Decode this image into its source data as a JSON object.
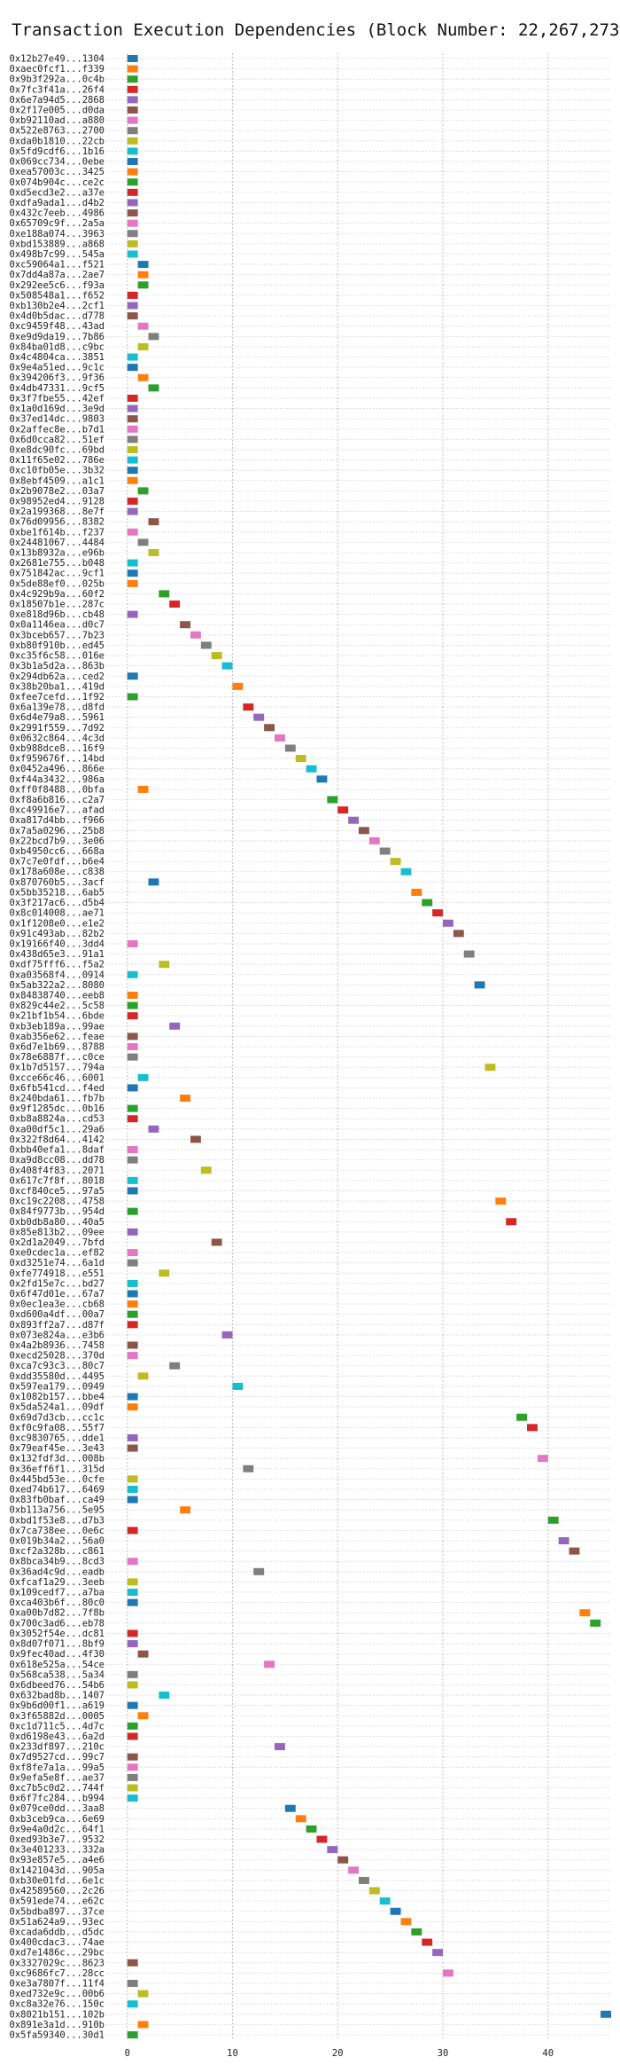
{
  "chart_data": {
    "type": "bar",
    "title": "Transaction Execution Dependencies (Block Number: 22,267,273)",
    "xlabel": "",
    "ylabel": "",
    "xlim": [
      -2,
      46
    ],
    "xticks": [
      0,
      10,
      20,
      30,
      40
    ],
    "grid": true,
    "bar_duration": 1,
    "palette": [
      "#1f77b4",
      "#ff7f0e",
      "#2ca02c",
      "#d62728",
      "#9467bd",
      "#8c564b",
      "#e377c2",
      "#7f7f7f",
      "#bcbd22",
      "#17becf"
    ],
    "transactions": [
      {
        "tx": "0x12b27e49...1304",
        "start": 0
      },
      {
        "tx": "0xaec0fcf1...f339",
        "start": 0
      },
      {
        "tx": "0x9b3f292a...0c4b",
        "start": 0
      },
      {
        "tx": "0x7fc3f41a...26f4",
        "start": 0
      },
      {
        "tx": "0x6e7a94d5...2868",
        "start": 0
      },
      {
        "tx": "0x2f17e005...d0da",
        "start": 0
      },
      {
        "tx": "0xb92110ad...a880",
        "start": 0
      },
      {
        "tx": "0x522e8763...2700",
        "start": 0
      },
      {
        "tx": "0xda0b1810...22cb",
        "start": 0
      },
      {
        "tx": "0x5fd9cdf6...1b16",
        "start": 0
      },
      {
        "tx": "0x069cc734...0ebe",
        "start": 0
      },
      {
        "tx": "0xea57003c...3425",
        "start": 0
      },
      {
        "tx": "0x074b904c...ce2c",
        "start": 0
      },
      {
        "tx": "0xd5ecd3e2...a37e",
        "start": 0
      },
      {
        "tx": "0xdfa9ada1...d4b2",
        "start": 0
      },
      {
        "tx": "0x432c7eeb...4986",
        "start": 0
      },
      {
        "tx": "0x65709c9f...2a5a",
        "start": 0
      },
      {
        "tx": "0xe188a074...3963",
        "start": 0
      },
      {
        "tx": "0xbd153889...a868",
        "start": 0
      },
      {
        "tx": "0x498b7c99...545a",
        "start": 0
      },
      {
        "tx": "0xc59064a1...f521",
        "start": 1
      },
      {
        "tx": "0x7dd4a87a...2ae7",
        "start": 1
      },
      {
        "tx": "0x292ee5c6...f93a",
        "start": 1
      },
      {
        "tx": "0x508548a1...f652",
        "start": 0
      },
      {
        "tx": "0xb130b2e4...2cf1",
        "start": 0
      },
      {
        "tx": "0x4d0b5dac...d778",
        "start": 0
      },
      {
        "tx": "0xc9459f48...43ad",
        "start": 1
      },
      {
        "tx": "0xe9d9da19...7b86",
        "start": 2
      },
      {
        "tx": "0x84ba01d8...c9bc",
        "start": 1
      },
      {
        "tx": "0x4c4804ca...3851",
        "start": 0
      },
      {
        "tx": "0x9e4a51ed...9c1c",
        "start": 0
      },
      {
        "tx": "0x394206f3...9f36",
        "start": 1
      },
      {
        "tx": "0x4db47331...9cf5",
        "start": 2
      },
      {
        "tx": "0x3f7fbe55...42ef",
        "start": 0
      },
      {
        "tx": "0x1a0d169d...3e9d",
        "start": 0
      },
      {
        "tx": "0x37ed14dc...9803",
        "start": 0
      },
      {
        "tx": "0x2affec8e...b7d1",
        "start": 0
      },
      {
        "tx": "0x6d0cca82...51ef",
        "start": 0
      },
      {
        "tx": "0xe8dc90fc...69bd",
        "start": 0
      },
      {
        "tx": "0x11f65e02...786e",
        "start": 0
      },
      {
        "tx": "0xc10fb05e...3b32",
        "start": 0
      },
      {
        "tx": "0x8ebf4509...a1c1",
        "start": 0
      },
      {
        "tx": "0x2b9078e2...03a7",
        "start": 1
      },
      {
        "tx": "0x98952ed4...9128",
        "start": 0
      },
      {
        "tx": "0x2a199368...8e7f",
        "start": 0
      },
      {
        "tx": "0x76d09956...8382",
        "start": 2
      },
      {
        "tx": "0xbe1f614b...f237",
        "start": 0
      },
      {
        "tx": "0x24481067...4484",
        "start": 1
      },
      {
        "tx": "0x13b8932a...e96b",
        "start": 2
      },
      {
        "tx": "0x2681e755...b048",
        "start": 0
      },
      {
        "tx": "0x751842ac...9cf1",
        "start": 0
      },
      {
        "tx": "0x5de88ef0...025b",
        "start": 0
      },
      {
        "tx": "0x4c929b9a...60f2",
        "start": 3
      },
      {
        "tx": "0x18507b1e...287c",
        "start": 4
      },
      {
        "tx": "0xe818d96b...cb48",
        "start": 0
      },
      {
        "tx": "0x0a1146ea...d0c7",
        "start": 5
      },
      {
        "tx": "0x3bceb657...7b23",
        "start": 6
      },
      {
        "tx": "0xb80f910b...ed45",
        "start": 7
      },
      {
        "tx": "0xc35f6c58...016e",
        "start": 8
      },
      {
        "tx": "0x3b1a5d2a...863b",
        "start": 9
      },
      {
        "tx": "0x294db62a...ced2",
        "start": 0
      },
      {
        "tx": "0x38b20ba1...419d",
        "start": 10
      },
      {
        "tx": "0xfee7cefd...1f92",
        "start": 0
      },
      {
        "tx": "0x6a139e78...d8fd",
        "start": 11
      },
      {
        "tx": "0x6d4e79a8...5961",
        "start": 12
      },
      {
        "tx": "0x2991f559...7d92",
        "start": 13
      },
      {
        "tx": "0x0632c864...4c3d",
        "start": 14
      },
      {
        "tx": "0xb988dce8...16f9",
        "start": 15
      },
      {
        "tx": "0xf959676f...14bd",
        "start": 16
      },
      {
        "tx": "0x0452a496...866e",
        "start": 17
      },
      {
        "tx": "0xf44a3432...986a",
        "start": 18
      },
      {
        "tx": "0xff0f8488...0bfa",
        "start": 1
      },
      {
        "tx": "0xf8a6b816...c2a7",
        "start": 19
      },
      {
        "tx": "0xc49916e7...afad",
        "start": 20
      },
      {
        "tx": "0xa817d4bb...f966",
        "start": 21
      },
      {
        "tx": "0x7a5a0296...25b8",
        "start": 22
      },
      {
        "tx": "0x22bcd7b9...3e06",
        "start": 23
      },
      {
        "tx": "0xb4950cc6...668a",
        "start": 24
      },
      {
        "tx": "0x7c7e0fdf...b6e4",
        "start": 25
      },
      {
        "tx": "0x178a608e...c838",
        "start": 26
      },
      {
        "tx": "0x870760b5...3acf",
        "start": 2
      },
      {
        "tx": "0x5bb35218...6ab5",
        "start": 27
      },
      {
        "tx": "0x3f217ac6...d5b4",
        "start": 28
      },
      {
        "tx": "0x8c014008...ae71",
        "start": 29
      },
      {
        "tx": "0x1f1208e0...e1e2",
        "start": 30
      },
      {
        "tx": "0x91c493ab...82b2",
        "start": 31
      },
      {
        "tx": "0x19166f40...3dd4",
        "start": 0
      },
      {
        "tx": "0x438d65e3...91a1",
        "start": 32
      },
      {
        "tx": "0xdf75fff6...f5a2",
        "start": 3
      },
      {
        "tx": "0xa03568f4...0914",
        "start": 0
      },
      {
        "tx": "0x5ab322a2...8080",
        "start": 33
      },
      {
        "tx": "0x84838740...eeb8",
        "start": 0
      },
      {
        "tx": "0x829c44e2...5c58",
        "start": 0
      },
      {
        "tx": "0x21bf1b54...6bde",
        "start": 0
      },
      {
        "tx": "0xb3eb189a...99ae",
        "start": 4
      },
      {
        "tx": "0xab356e62...feae",
        "start": 0
      },
      {
        "tx": "0x6d7e1b69...8788",
        "start": 0
      },
      {
        "tx": "0x78e6887f...c0ce",
        "start": 0
      },
      {
        "tx": "0x1b7d5157...794a",
        "start": 34
      },
      {
        "tx": "0xcce66c46...6001",
        "start": 1
      },
      {
        "tx": "0x6fb541cd...f4ed",
        "start": 0
      },
      {
        "tx": "0x240bda61...fb7b",
        "start": 5
      },
      {
        "tx": "0x9f1285dc...0b16",
        "start": 0
      },
      {
        "tx": "0xb8a8824a...cd53",
        "start": 0
      },
      {
        "tx": "0xa00df5c1...29a6",
        "start": 2
      },
      {
        "tx": "0x322f8d64...4142",
        "start": 6
      },
      {
        "tx": "0xbb40efa1...8daf",
        "start": 0
      },
      {
        "tx": "0xa9d8cc08...dd78",
        "start": 0
      },
      {
        "tx": "0x408f4f83...2071",
        "start": 7
      },
      {
        "tx": "0x617c7f8f...8018",
        "start": 0
      },
      {
        "tx": "0xcf840ce5...97a5",
        "start": 0
      },
      {
        "tx": "0xc19c2208...4758",
        "start": 35
      },
      {
        "tx": "0x84f9773b...954d",
        "start": 0
      },
      {
        "tx": "0xb0db8a80...40a5",
        "start": 36
      },
      {
        "tx": "0x85e813b2...09ee",
        "start": 0
      },
      {
        "tx": "0x2d1a2049...7bfd",
        "start": 8
      },
      {
        "tx": "0xe0cdec1a...ef82",
        "start": 0
      },
      {
        "tx": "0xd3251e74...6a1d",
        "start": 0
      },
      {
        "tx": "0xfe774918...e551",
        "start": 3
      },
      {
        "tx": "0x2fd15e7c...bd27",
        "start": 0
      },
      {
        "tx": "0x6f47d01e...67a7",
        "start": 0
      },
      {
        "tx": "0x0ec1ea3e...cb68",
        "start": 0
      },
      {
        "tx": "0xd600a4df...00a7",
        "start": 0
      },
      {
        "tx": "0x893ff2a7...d87f",
        "start": 0
      },
      {
        "tx": "0x073e824a...e3b6",
        "start": 9
      },
      {
        "tx": "0x4a2b8936...7458",
        "start": 0
      },
      {
        "tx": "0xecd25028...370d",
        "start": 0
      },
      {
        "tx": "0xca7c93c3...80c7",
        "start": 4
      },
      {
        "tx": "0xdd35580d...4495",
        "start": 1
      },
      {
        "tx": "0x597ea179...0949",
        "start": 10
      },
      {
        "tx": "0x1082b157...bbe4",
        "start": 0
      },
      {
        "tx": "0x5da524a1...09df",
        "start": 0
      },
      {
        "tx": "0x69d7d3cb...cc1c",
        "start": 37
      },
      {
        "tx": "0xf0c9fa08...55f7",
        "start": 38
      },
      {
        "tx": "0xc9830765...dde1",
        "start": 0
      },
      {
        "tx": "0x79eaf45e...3e43",
        "start": 0
      },
      {
        "tx": "0x132fdf3d...008b",
        "start": 39
      },
      {
        "tx": "0x36eff6f1...315d",
        "start": 11
      },
      {
        "tx": "0x445bd53e...0cfe",
        "start": 0
      },
      {
        "tx": "0xed74b617...6469",
        "start": 0
      },
      {
        "tx": "0x83fb0baf...ca49",
        "start": 0
      },
      {
        "tx": "0xb113a756...5e95",
        "start": 5
      },
      {
        "tx": "0xbd1f53e8...d7b3",
        "start": 40
      },
      {
        "tx": "0x7ca738ee...0e6c",
        "start": 0
      },
      {
        "tx": "0x019b34a2...56a0",
        "start": 41
      },
      {
        "tx": "0xcf2a328b...c861",
        "start": 42
      },
      {
        "tx": "0x8bca34b9...8cd3",
        "start": 0
      },
      {
        "tx": "0x36ad4c9d...eadb",
        "start": 12
      },
      {
        "tx": "0xfcaf1a29...3eeb",
        "start": 0
      },
      {
        "tx": "0x109cedf7...a7ba",
        "start": 0
      },
      {
        "tx": "0xca403b6f...80c0",
        "start": 0
      },
      {
        "tx": "0xa00b7d82...7f8b",
        "start": 43
      },
      {
        "tx": "0x700c3ad6...eb78",
        "start": 44
      },
      {
        "tx": "0x3052f54e...dc81",
        "start": 0
      },
      {
        "tx": "0x8d07f071...8bf9",
        "start": 0
      },
      {
        "tx": "0x9fec40ad...4f30",
        "start": 1
      },
      {
        "tx": "0x618e525a...54ce",
        "start": 13
      },
      {
        "tx": "0x568ca538...5a34",
        "start": 0
      },
      {
        "tx": "0x6dbeed76...54b6",
        "start": 0
      },
      {
        "tx": "0x632bad8b...1407",
        "start": 3
      },
      {
        "tx": "0x9b6d00f1...a619",
        "start": 0
      },
      {
        "tx": "0x3f65882d...0005",
        "start": 1
      },
      {
        "tx": "0xc1d711c5...4d7c",
        "start": 0
      },
      {
        "tx": "0xd6198e43...6a2d",
        "start": 0
      },
      {
        "tx": "0x233df897...210c",
        "start": 14
      },
      {
        "tx": "0x7d9527cd...99c7",
        "start": 0
      },
      {
        "tx": "0xf8fe7a1a...99a5",
        "start": 0
      },
      {
        "tx": "0x9efa5e8f...ae37",
        "start": 0
      },
      {
        "tx": "0xc7b5c0d2...744f",
        "start": 0
      },
      {
        "tx": "0x6f7fc284...b994",
        "start": 0
      },
      {
        "tx": "0x079ce0dd...3aa8",
        "start": 15
      },
      {
        "tx": "0xb3ceb9ca...6e69",
        "start": 16
      },
      {
        "tx": "0x9e4a0d2c...64f1",
        "start": 17
      },
      {
        "tx": "0xed93b3e7...9532",
        "start": 18
      },
      {
        "tx": "0x3e401233...332a",
        "start": 19
      },
      {
        "tx": "0x93e857e5...a4e6",
        "start": 20
      },
      {
        "tx": "0x1421043d...905a",
        "start": 21
      },
      {
        "tx": "0xb30e01fd...6e1c",
        "start": 22
      },
      {
        "tx": "0x42589560...2c26",
        "start": 23
      },
      {
        "tx": "0x591ede74...e62c",
        "start": 24
      },
      {
        "tx": "0x5bdba897...37ce",
        "start": 25
      },
      {
        "tx": "0x51a624a9...93ec",
        "start": 26
      },
      {
        "tx": "0xcada6ddb...d5dc",
        "start": 27
      },
      {
        "tx": "0x400cdac3...74ae",
        "start": 28
      },
      {
        "tx": "0xd7e1486c...29bc",
        "start": 29
      },
      {
        "tx": "0x3327029c...8623",
        "start": 0
      },
      {
        "tx": "0xc9686fc7...28cc",
        "start": 30
      },
      {
        "tx": "0xe3a7807f...11f4",
        "start": 0
      },
      {
        "tx": "0xed732e9c...00b6",
        "start": 1
      },
      {
        "tx": "0xc8a32e76...150c",
        "start": 0
      },
      {
        "tx": "0x8021b151...102b",
        "start": 45
      },
      {
        "tx": "0x891e3a1d...910b",
        "start": 1
      },
      {
        "tx": "0x5fa59340...30d1",
        "start": 0
      }
    ]
  }
}
